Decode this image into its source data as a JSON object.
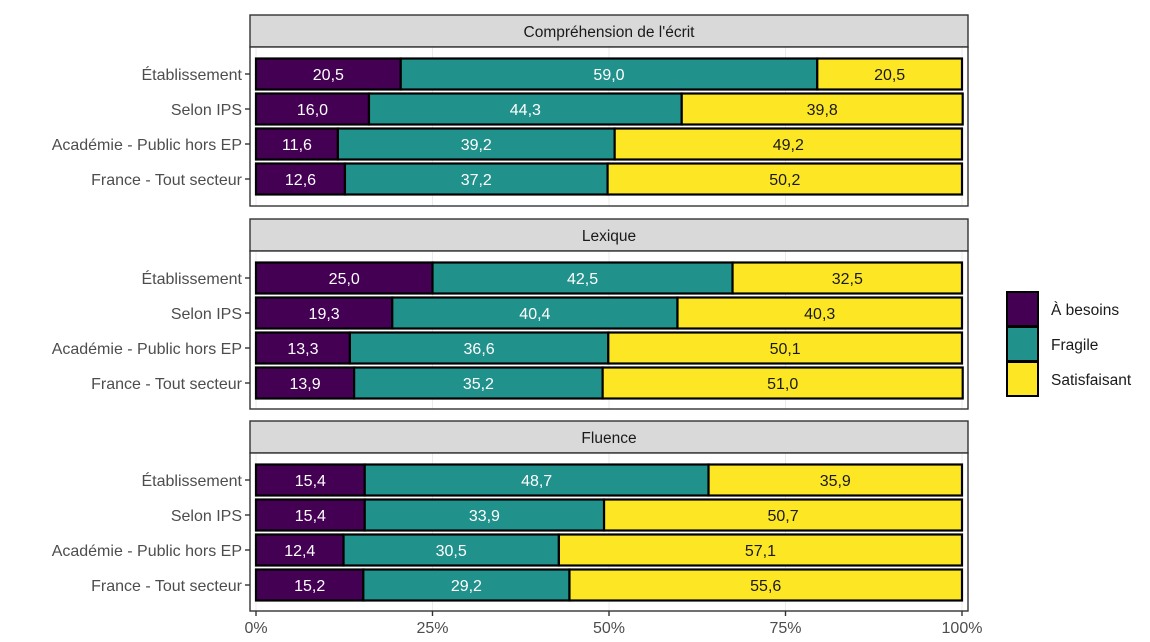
{
  "chart_data": {
    "type": "bar",
    "orientation": "horizontal",
    "stacked": true,
    "categories": [
      "Établissement",
      "Selon IPS",
      "Académie - Public hors EP",
      "France - Tout secteur"
    ],
    "panels": [
      {
        "title": "Compréhension de l'écrit",
        "series": [
          {
            "name": "À besoins",
            "values": [
              20.5,
              16.0,
              11.6,
              12.6
            ]
          },
          {
            "name": "Fragile",
            "values": [
              59.0,
              44.3,
              39.2,
              37.2
            ]
          },
          {
            "name": "Satisfaisant",
            "values": [
              20.5,
              39.8,
              49.2,
              50.2
            ]
          }
        ],
        "labels": [
          [
            "20,5",
            "59,0",
            "20,5"
          ],
          [
            "16,0",
            "44,3",
            "39,8"
          ],
          [
            "11,6",
            "39,2",
            "49,2"
          ],
          [
            "12,6",
            "37,2",
            "50,2"
          ]
        ]
      },
      {
        "title": "Lexique",
        "series": [
          {
            "name": "À besoins",
            "values": [
              25.0,
              19.3,
              13.3,
              13.9
            ]
          },
          {
            "name": "Fragile",
            "values": [
              42.5,
              40.4,
              36.6,
              35.2
            ]
          },
          {
            "name": "Satisfaisant",
            "values": [
              32.5,
              40.3,
              50.1,
              51.0
            ]
          }
        ],
        "labels": [
          [
            "25,0",
            "42,5",
            "32,5"
          ],
          [
            "19,3",
            "40,4",
            "40,3"
          ],
          [
            "13,3",
            "36,6",
            "50,1"
          ],
          [
            "13,9",
            "35,2",
            "51,0"
          ]
        ]
      },
      {
        "title": "Fluence",
        "series": [
          {
            "name": "À besoins",
            "values": [
              15.4,
              15.4,
              12.4,
              15.2
            ]
          },
          {
            "name": "Fragile",
            "values": [
              48.7,
              33.9,
              30.5,
              29.2
            ]
          },
          {
            "name": "Satisfaisant",
            "values": [
              35.9,
              50.7,
              57.1,
              55.6
            ]
          }
        ],
        "labels": [
          [
            "15,4",
            "48,7",
            "35,9"
          ],
          [
            "15,4",
            "33,9",
            "50,7"
          ],
          [
            "12,4",
            "30,5",
            "57,1"
          ],
          [
            "15,2",
            "29,2",
            "55,6"
          ]
        ]
      }
    ],
    "x_ticks": [
      0,
      25,
      50,
      75,
      100
    ],
    "x_tick_labels": [
      "0%",
      "25%",
      "50%",
      "75%",
      "100%"
    ],
    "xlim": [
      0,
      100
    ],
    "legend": {
      "placement": "right",
      "entries": [
        "À besoins",
        "Fragile",
        "Satisfaisant"
      ]
    },
    "colors": {
      "À besoins": "#440154",
      "Fragile": "#21918c",
      "Satisfaisant": "#fde725",
      "strip_bg": "#d9d9d9",
      "border": "#333333",
      "label_light": "#ffffff",
      "label_dark": "#1a1a1a"
    },
    "grid": true
  }
}
